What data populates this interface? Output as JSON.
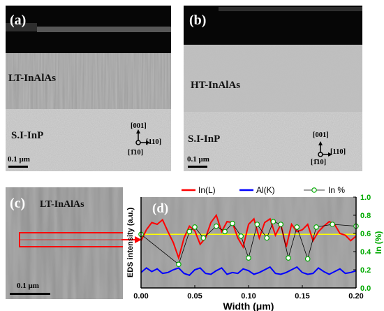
{
  "panels": {
    "a": {
      "letter": "(a)",
      "layer": "LT-InAlAs",
      "substrate": "S.I-InP",
      "scale": "0.1 μm",
      "dirs": {
        "up": "[001]",
        "right": "[110]",
        "down": "[1̄10]"
      }
    },
    "b": {
      "letter": "(b)",
      "layer": "HT-InAlAs",
      "substrate": "S.I-InP",
      "scale": "0.1 μm",
      "dirs": {
        "up": "[001]",
        "right": "[110]",
        "down": "[1̄10]"
      }
    },
    "c": {
      "letter": "(c)",
      "layer": "LT-InAlAs",
      "scale": "0.1 μm"
    },
    "d": {
      "letter": "(d)"
    }
  },
  "colors": {
    "in_l": "#ff0000",
    "al_k": "#0000ff",
    "in_pct": "#00aa00",
    "mean_line": "#ffff00",
    "guide": "#000000"
  },
  "chart_data": {
    "type": "line",
    "xlabel": "Width (μm)",
    "ylabel_left": "EDS intensity (a.u.)",
    "ylabel_right": "In (%)",
    "xlim": [
      0.0,
      0.2
    ],
    "ylim_right": [
      0.0,
      1.0
    ],
    "x_ticks": [
      "0.00",
      "0.05",
      "0.10",
      "0.15",
      "0.20"
    ],
    "y_right_ticks": [
      "0.0",
      "0.2",
      "0.4",
      "0.6",
      "0.8",
      "1.0"
    ],
    "legend": [
      "In(L)",
      "Al(K)",
      "In %"
    ],
    "legend_position": "top",
    "mean_level": 0.59,
    "series": [
      {
        "name": "In(L)",
        "color": "#ff0000",
        "x": [
          0.0,
          0.005,
          0.01,
          0.015,
          0.02,
          0.025,
          0.03,
          0.035,
          0.04,
          0.045,
          0.05,
          0.055,
          0.06,
          0.065,
          0.07,
          0.075,
          0.08,
          0.085,
          0.09,
          0.095,
          0.1,
          0.105,
          0.11,
          0.115,
          0.12,
          0.125,
          0.13,
          0.135,
          0.14,
          0.145,
          0.15,
          0.155,
          0.16,
          0.165,
          0.17,
          0.175,
          0.18,
          0.185,
          0.19,
          0.195,
          0.2
        ],
        "y": [
          0.52,
          0.64,
          0.72,
          0.7,
          0.75,
          0.62,
          0.5,
          0.33,
          0.55,
          0.68,
          0.63,
          0.48,
          0.55,
          0.72,
          0.8,
          0.62,
          0.73,
          0.72,
          0.55,
          0.45,
          0.7,
          0.76,
          0.55,
          0.72,
          0.76,
          0.58,
          0.7,
          0.45,
          0.7,
          0.62,
          0.64,
          0.7,
          0.52,
          0.62,
          0.68,
          0.73,
          0.7,
          0.6,
          0.58,
          0.52,
          0.57
        ]
      },
      {
        "name": "Al(K)",
        "color": "#0000ff",
        "x": [
          0.0,
          0.005,
          0.01,
          0.015,
          0.02,
          0.025,
          0.03,
          0.035,
          0.04,
          0.045,
          0.05,
          0.055,
          0.06,
          0.065,
          0.07,
          0.075,
          0.08,
          0.085,
          0.09,
          0.095,
          0.1,
          0.105,
          0.11,
          0.115,
          0.12,
          0.125,
          0.13,
          0.135,
          0.14,
          0.145,
          0.15,
          0.155,
          0.16,
          0.165,
          0.17,
          0.175,
          0.18,
          0.185,
          0.19,
          0.195,
          0.2
        ],
        "y": [
          0.17,
          0.22,
          0.18,
          0.21,
          0.16,
          0.17,
          0.2,
          0.22,
          0.16,
          0.14,
          0.2,
          0.22,
          0.16,
          0.15,
          0.19,
          0.22,
          0.15,
          0.17,
          0.16,
          0.21,
          0.19,
          0.15,
          0.17,
          0.2,
          0.23,
          0.16,
          0.15,
          0.17,
          0.2,
          0.23,
          0.17,
          0.15,
          0.16,
          0.22,
          0.18,
          0.15,
          0.18,
          0.21,
          0.16,
          0.17,
          0.19
        ]
      },
      {
        "name": "In %",
        "color": "#00aa00",
        "x": [
          0.0,
          0.035,
          0.045,
          0.05,
          0.058,
          0.07,
          0.078,
          0.085,
          0.093,
          0.1,
          0.108,
          0.117,
          0.123,
          0.13,
          0.137,
          0.145,
          0.155,
          0.163,
          0.178,
          0.2
        ],
        "y": [
          0.59,
          0.26,
          0.62,
          0.67,
          0.55,
          0.68,
          0.62,
          0.71,
          0.57,
          0.33,
          0.7,
          0.55,
          0.73,
          0.7,
          0.33,
          0.67,
          0.32,
          0.67,
          0.7,
          0.68
        ]
      }
    ]
  }
}
